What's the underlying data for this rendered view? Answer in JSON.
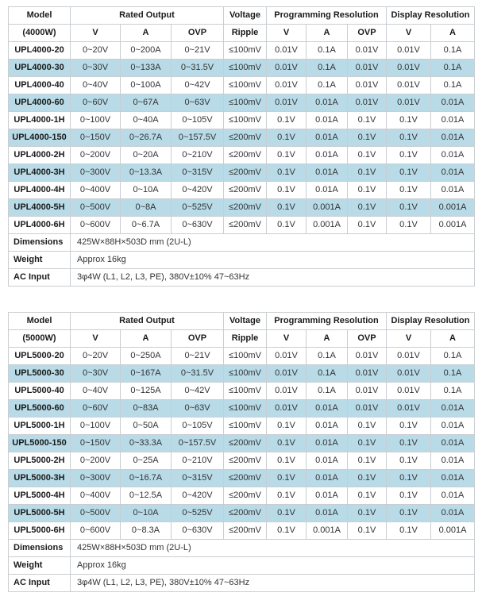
{
  "colors": {
    "stripe": "#b8dbe7",
    "border": "#c9ced2",
    "text": "#333333"
  },
  "tables": [
    {
      "name": "4000w",
      "header": {
        "model_line1": "Model",
        "model_line2": "(4000W)",
        "rated_output": "Rated Output",
        "voltage_line1": "Voltage",
        "voltage_line2": "Ripple",
        "programming": "Programming Resolution",
        "display": "Display Resolution",
        "sub": [
          "V",
          "A",
          "OVP",
          "V",
          "A",
          "OVP",
          "V",
          "A"
        ]
      },
      "rows": [
        {
          "model": "UPL4000-20",
          "cells": [
            "0~20V",
            "0~200A",
            "0~21V",
            "≤100mV",
            "0.01V",
            "0.1A",
            "0.01V",
            "0.01V",
            "0.1A"
          ],
          "striped": false
        },
        {
          "model": "UPL4000-30",
          "cells": [
            "0~30V",
            "0~133A",
            "0~31.5V",
            "≤100mV",
            "0.01V",
            "0.1A",
            "0.01V",
            "0.01V",
            "0.1A"
          ],
          "striped": true
        },
        {
          "model": "UPL4000-40",
          "cells": [
            "0~40V",
            "0~100A",
            "0~42V",
            "≤100mV",
            "0.01V",
            "0.1A",
            "0.01V",
            "0.01V",
            "0.1A"
          ],
          "striped": false
        },
        {
          "model": "UPL4000-60",
          "cells": [
            "0~60V",
            "0~67A",
            "0~63V",
            "≤100mV",
            "0.01V",
            "0.01A",
            "0.01V",
            "0.01V",
            "0.01A"
          ],
          "striped": true
        },
        {
          "model": "UPL4000-1H",
          "cells": [
            "0~100V",
            "0~40A",
            "0~105V",
            "≤100mV",
            "0.1V",
            "0.01A",
            "0.1V",
            "0.1V",
            "0.01A"
          ],
          "striped": false
        },
        {
          "model": "UPL4000-150",
          "cells": [
            "0~150V",
            "0~26.7A",
            "0~157.5V",
            "≤200mV",
            "0.1V",
            "0.01A",
            "0.1V",
            "0.1V",
            "0.01A"
          ],
          "striped": true
        },
        {
          "model": "UPL4000-2H",
          "cells": [
            "0~200V",
            "0~20A",
            "0~210V",
            "≤200mV",
            "0.1V",
            "0.01A",
            "0.1V",
            "0.1V",
            "0.01A"
          ],
          "striped": false
        },
        {
          "model": "UPL4000-3H",
          "cells": [
            "0~300V",
            "0~13.3A",
            "0~315V",
            "≤200mV",
            "0.1V",
            "0.01A",
            "0.1V",
            "0.1V",
            "0.01A"
          ],
          "striped": true
        },
        {
          "model": "UPL4000-4H",
          "cells": [
            "0~400V",
            "0~10A",
            "0~420V",
            "≤200mV",
            "0.1V",
            "0.01A",
            "0.1V",
            "0.1V",
            "0.01A"
          ],
          "striped": false
        },
        {
          "model": "UPL4000-5H",
          "cells": [
            "0~500V",
            "0~8A",
            "0~525V",
            "≤200mV",
            "0.1V",
            "0.001A",
            "0.1V",
            "0.1V",
            "0.001A"
          ],
          "striped": true
        },
        {
          "model": "UPL4000-6H",
          "cells": [
            "0~600V",
            "0~6.7A",
            "0~630V",
            "≤200mV",
            "0.1V",
            "0.001A",
            "0.1V",
            "0.1V",
            "0.001A"
          ],
          "striped": false
        }
      ],
      "footer": [
        {
          "label": "Dimensions",
          "value": "425W×88H×503D mm (2U-L)"
        },
        {
          "label": "Weight",
          "value": "Approx 16kg"
        },
        {
          "label": "AC Input",
          "value": "3φ4W (L1, L2, L3, PE), 380V±10% 47~63Hz"
        }
      ]
    },
    {
      "name": "5000w",
      "header": {
        "model_line1": "Model",
        "model_line2": "(5000W)",
        "rated_output": "Rated Output",
        "voltage_line1": "Voltage",
        "voltage_line2": "Ripple",
        "programming": "Programming Resolution",
        "display": "Display Resolution",
        "sub": [
          "V",
          "A",
          "OVP",
          "V",
          "A",
          "OVP",
          "V",
          "A"
        ]
      },
      "rows": [
        {
          "model": "UPL5000-20",
          "cells": [
            "0~20V",
            "0~250A",
            "0~21V",
            "≤100mV",
            "0.01V",
            "0.1A",
            "0.01V",
            "0.01V",
            "0.1A"
          ],
          "striped": false
        },
        {
          "model": "UPL5000-30",
          "cells": [
            "0~30V",
            "0~167A",
            "0~31.5V",
            "≤100mV",
            "0.01V",
            "0.1A",
            "0.01V",
            "0.01V",
            "0.1A"
          ],
          "striped": true
        },
        {
          "model": "UPL5000-40",
          "cells": [
            "0~40V",
            "0~125A",
            "0~42V",
            "≤100mV",
            "0.01V",
            "0.1A",
            "0.01V",
            "0.01V",
            "0.1A"
          ],
          "striped": false
        },
        {
          "model": "UPL5000-60",
          "cells": [
            "0~60V",
            "0~83A",
            "0~63V",
            "≤100mV",
            "0.01V",
            "0.01A",
            "0.01V",
            "0.01V",
            "0.01A"
          ],
          "striped": true
        },
        {
          "model": "UPL5000-1H",
          "cells": [
            "0~100V",
            "0~50A",
            "0~105V",
            "≤100mV",
            "0.1V",
            "0.01A",
            "0.1V",
            "0.1V",
            "0.01A"
          ],
          "striped": false
        },
        {
          "model": "UPL5000-150",
          "cells": [
            "0~150V",
            "0~33.3A",
            "0~157.5V",
            "≤200mV",
            "0.1V",
            "0.01A",
            "0.1V",
            "0.1V",
            "0.01A"
          ],
          "striped": true
        },
        {
          "model": "UPL5000-2H",
          "cells": [
            "0~200V",
            "0~25A",
            "0~210V",
            "≤200mV",
            "0.1V",
            "0.01A",
            "0.1V",
            "0.1V",
            "0.01A"
          ],
          "striped": false
        },
        {
          "model": "UPL5000-3H",
          "cells": [
            "0~300V",
            "0~16.7A",
            "0~315V",
            "≤200mV",
            "0.1V",
            "0.01A",
            "0.1V",
            "0.1V",
            "0.01A"
          ],
          "striped": true
        },
        {
          "model": "UPL5000-4H",
          "cells": [
            "0~400V",
            "0~12.5A",
            "0~420V",
            "≤200mV",
            "0.1V",
            "0.01A",
            "0.1V",
            "0.1V",
            "0.01A"
          ],
          "striped": false
        },
        {
          "model": "UPL5000-5H",
          "cells": [
            "0~500V",
            "0~10A",
            "0~525V",
            "≤200mV",
            "0.1V",
            "0.01A",
            "0.1V",
            "0.1V",
            "0.01A"
          ],
          "striped": true
        },
        {
          "model": "UPL5000-6H",
          "cells": [
            "0~600V",
            "0~8.3A",
            "0~630V",
            "≤200mV",
            "0.1V",
            "0.001A",
            "0.1V",
            "0.1V",
            "0.001A"
          ],
          "striped": false
        }
      ],
      "footer": [
        {
          "label": "Dimensions",
          "value": "425W×88H×503D mm (2U-L)"
        },
        {
          "label": "Weight",
          "value": "Approx 16kg"
        },
        {
          "label": "AC Input",
          "value": "3φ4W (L1, L2, L3, PE), 380V±10% 47~63Hz"
        }
      ]
    }
  ]
}
